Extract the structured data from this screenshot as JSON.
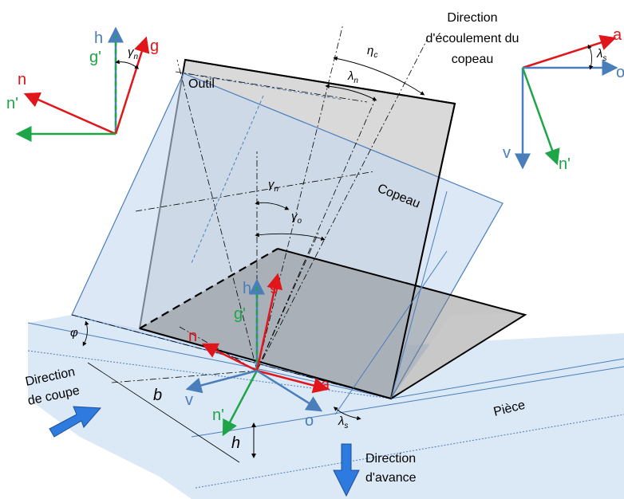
{
  "labels": {
    "flow_direction": [
      "Direction",
      "d'écoulement du",
      "copeau"
    ],
    "tool": "Outil",
    "chip": "Copeau",
    "workpiece": "Pièce",
    "cut_direction": [
      "Direction",
      "de coupe"
    ],
    "feed_direction": [
      "Direction",
      "d'avance"
    ],
    "width": "b",
    "thickness": "h",
    "shear_angle": "φ"
  },
  "vectors": {
    "h": "h",
    "g_prime": "g'",
    "g": "g",
    "n": "n",
    "n_prime": "n'",
    "a": "a",
    "v": "v",
    "o": "o"
  },
  "angles": {
    "gamma_n": {
      "symbol": "γ",
      "sub": "n"
    },
    "gamma_o": {
      "symbol": "γ",
      "sub": "o"
    },
    "lambda_n": {
      "symbol": "λ",
      "sub": "n"
    },
    "eta_c": {
      "symbol": "η",
      "sub": "c"
    },
    "lambda_s": {
      "symbol": "λ",
      "sub": "s"
    }
  }
}
